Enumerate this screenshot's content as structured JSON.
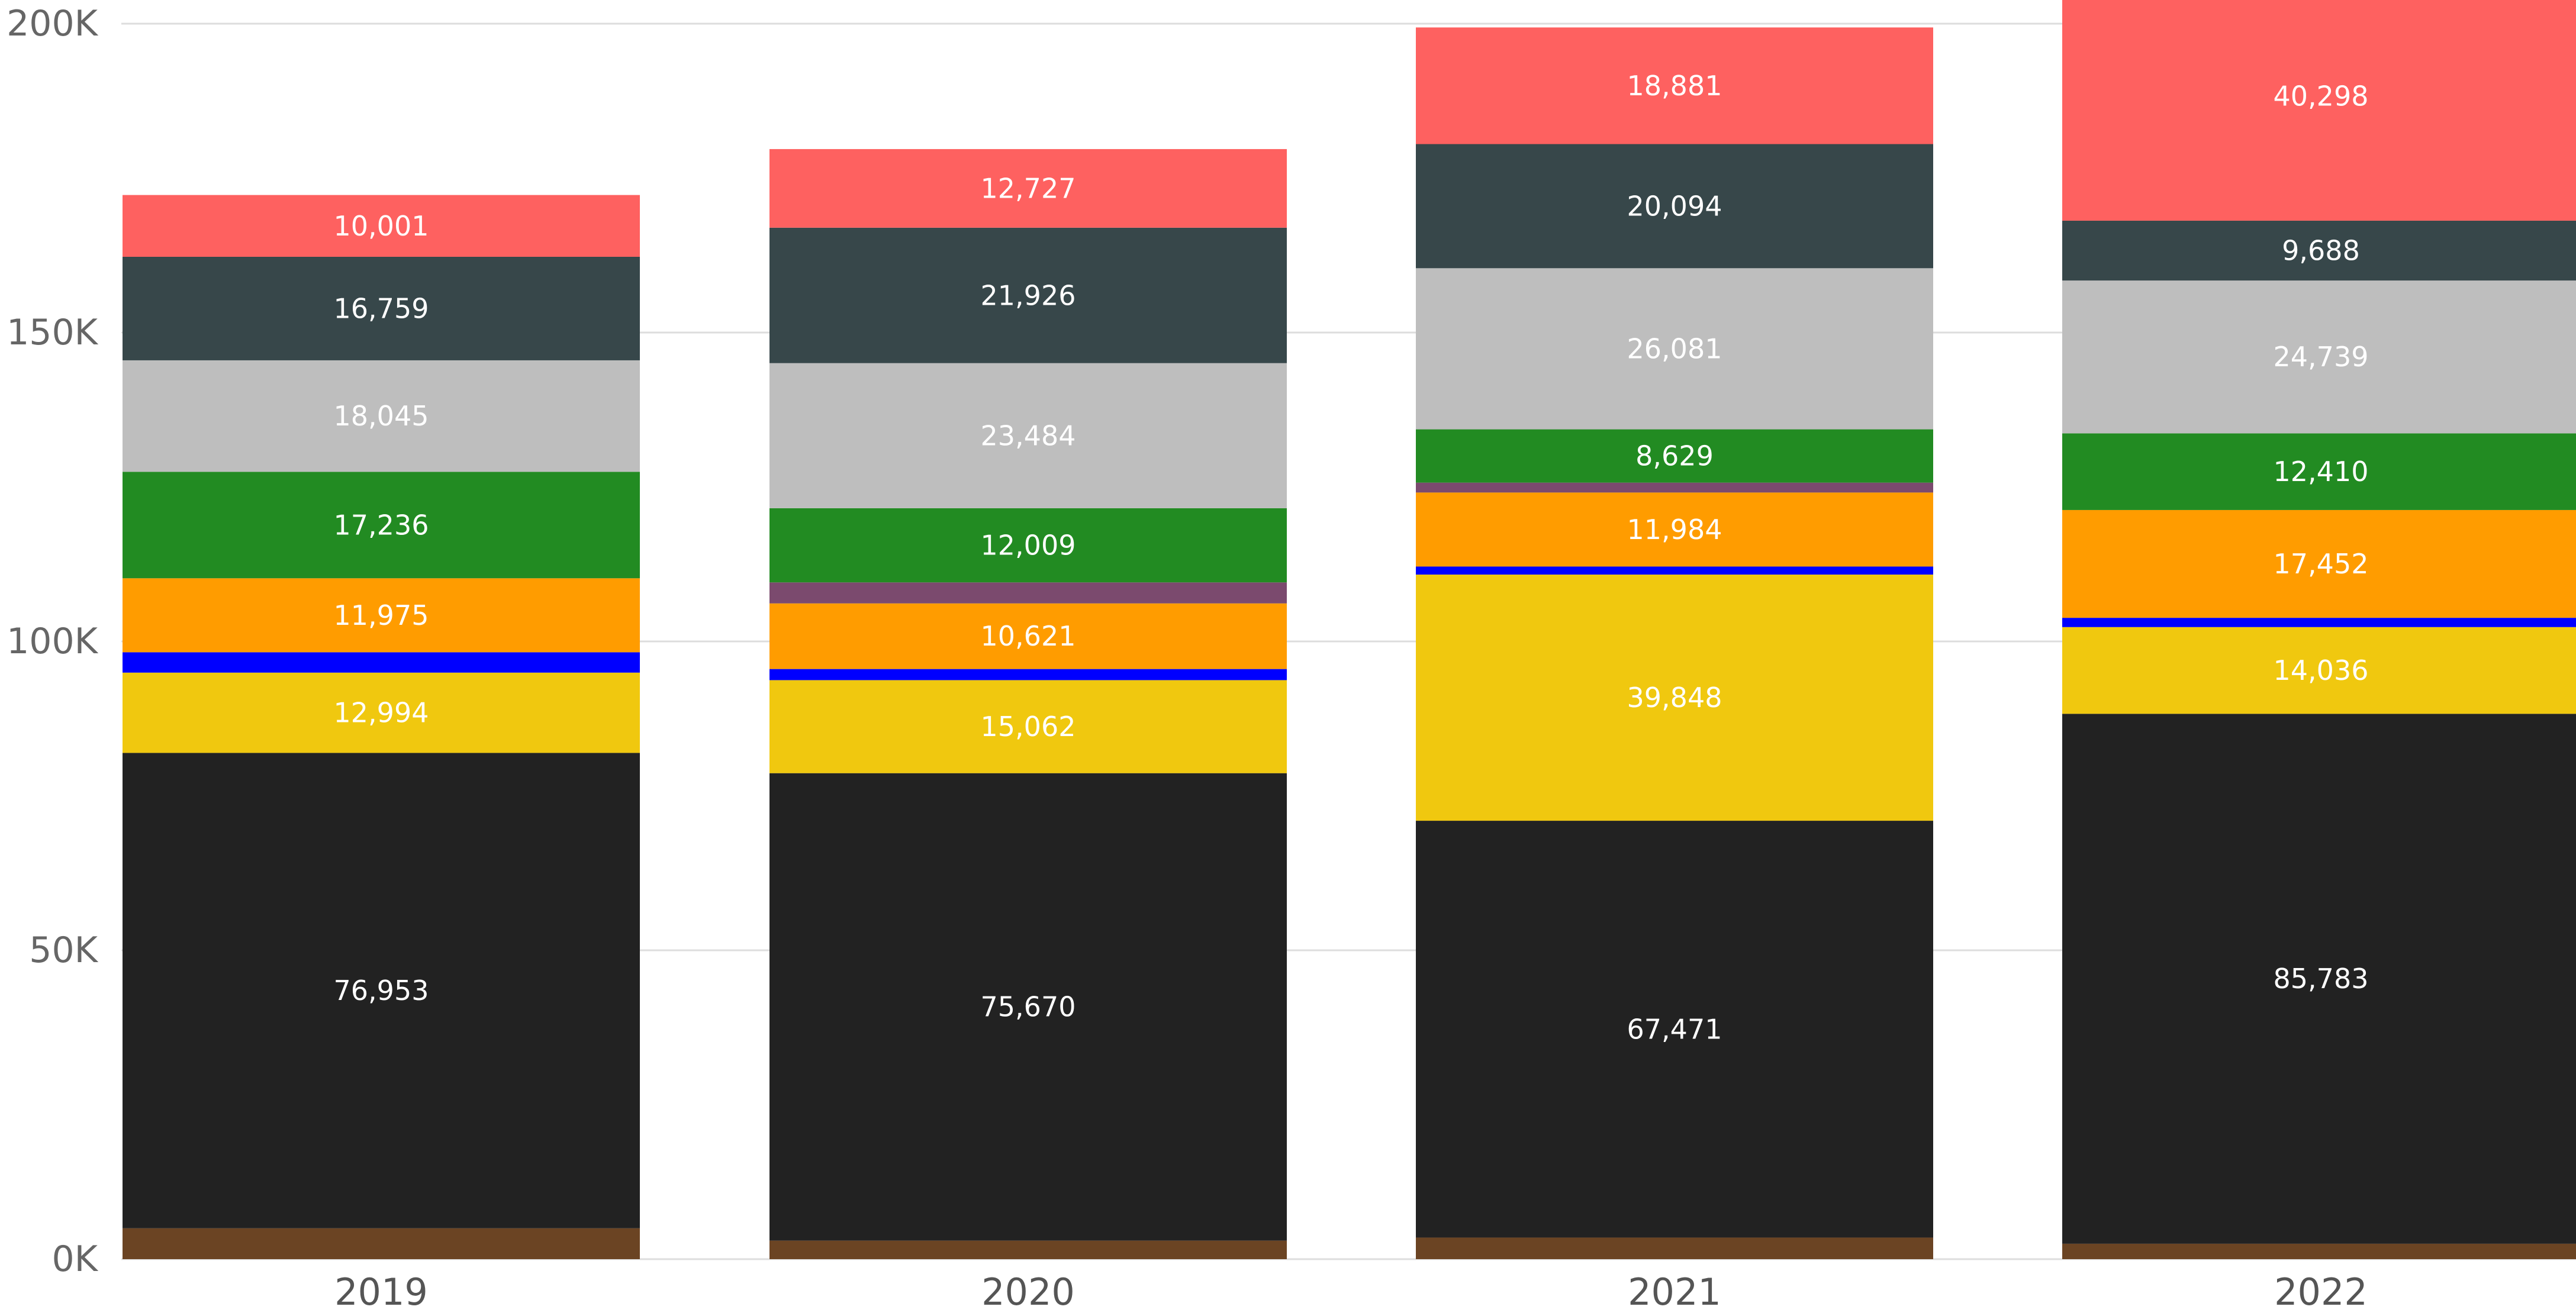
{
  "chart_data": {
    "type": "bar",
    "stacked": true,
    "categories": [
      "2019",
      "2020",
      "2021",
      "2022"
    ],
    "ylim": [
      0,
      200000
    ],
    "yticks": [
      0,
      50000,
      100000,
      150000,
      200000
    ],
    "ytick_labels": [
      "0K",
      "50K",
      "100K",
      "150K",
      "200K"
    ],
    "grid": true,
    "legend": "none",
    "series": [
      {
        "color": "#6b4423",
        "values": [
          5000,
          3000,
          3500,
          2500
        ],
        "labels": [
          "",
          "",
          "",
          ""
        ]
      },
      {
        "color": "#222222",
        "values": [
          76953,
          75670,
          67471,
          85783
        ],
        "labels": [
          "76,953",
          "75,670",
          "67,471",
          "85,783"
        ]
      },
      {
        "color": "#f0c80f",
        "values": [
          12994,
          15062,
          39848,
          14036
        ],
        "labels": [
          "12,994",
          "15,062",
          "39,848",
          "14,036"
        ]
      },
      {
        "color": "#0000ff",
        "values": [
          3300,
          1800,
          1300,
          1500
        ],
        "labels": [
          "",
          "",
          "",
          ""
        ]
      },
      {
        "color": "#ff9c00",
        "values": [
          11975,
          10621,
          11984,
          17452
        ],
        "labels": [
          "11,975",
          "10,621",
          "11,984",
          "17,452"
        ]
      },
      {
        "color": "#7b4a6e",
        "values": [
          0,
          3400,
          1600,
          0
        ],
        "labels": [
          "",
          "",
          "",
          ""
        ]
      },
      {
        "color": "#228b22",
        "values": [
          17236,
          12009,
          8629,
          12410
        ],
        "labels": [
          "17,236",
          "12,009",
          "8,629",
          "12,410"
        ]
      },
      {
        "color": "#bebebe",
        "values": [
          18045,
          23484,
          26081,
          24739
        ],
        "labels": [
          "18,045",
          "23,484",
          "26,081",
          "24,739"
        ]
      },
      {
        "color": "#37474a",
        "values": [
          16759,
          21926,
          20094,
          9688
        ],
        "labels": [
          "16,759",
          "21,926",
          "20,094",
          "9,688"
        ]
      },
      {
        "color": "#fe6160",
        "values": [
          10001,
          12727,
          18881,
          40298
        ],
        "labels": [
          "10,001",
          "12,727",
          "18,881",
          "40,298"
        ]
      }
    ]
  }
}
